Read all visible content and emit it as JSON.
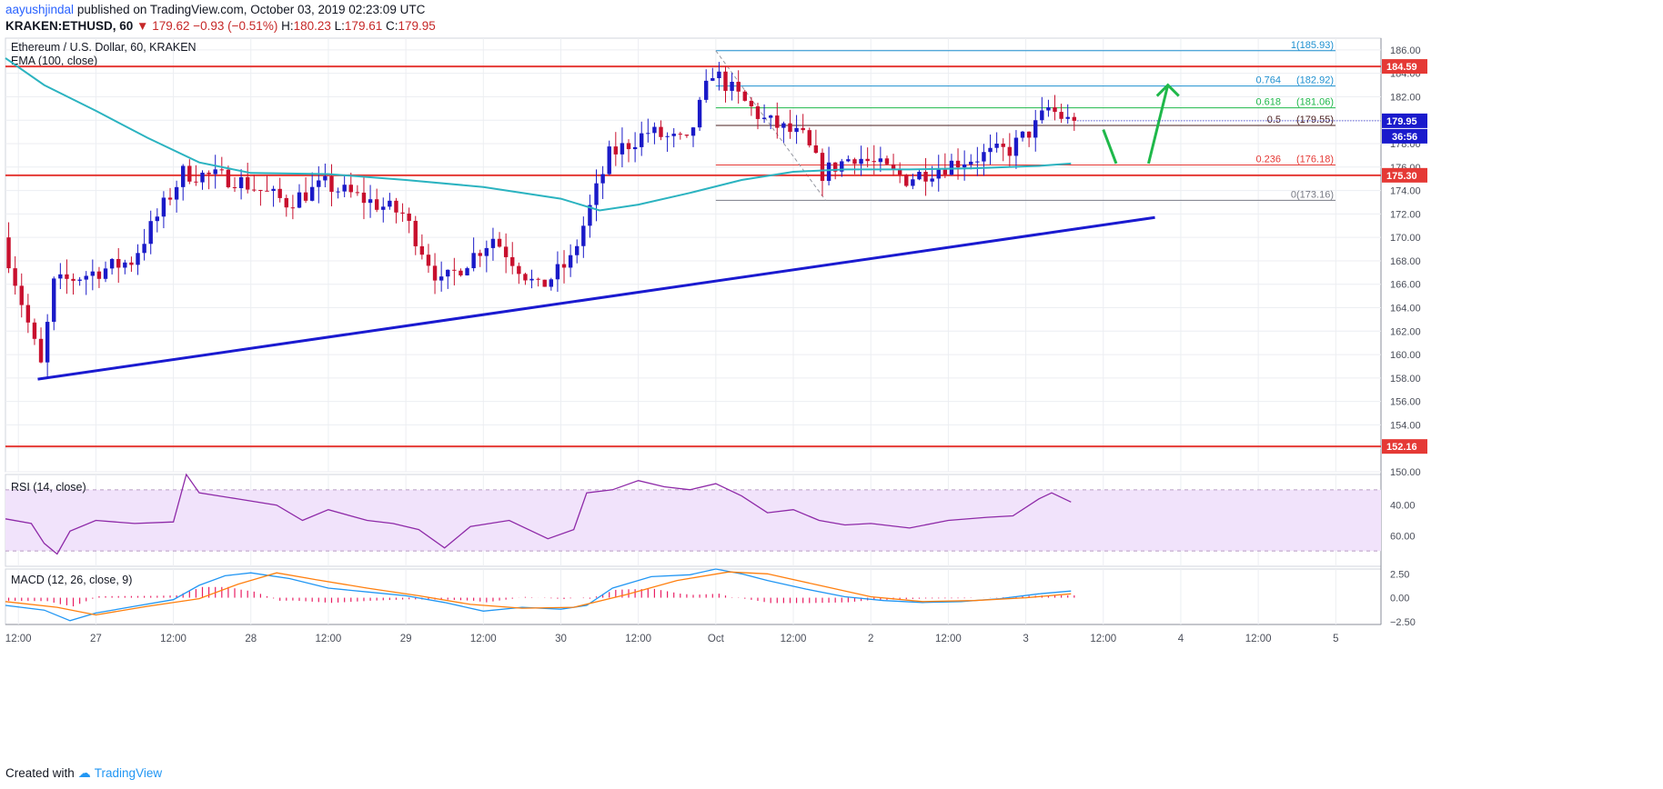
{
  "header": {
    "author": "aayushjindal",
    "published_text": "published on TradingView.com, October 03, 2019 02:23:09 UTC",
    "symbol": "KRAKEN:ETHUSD, 60",
    "change_arrow": "▼",
    "open": "179.62",
    "change": "−0.93 (−0.51%)",
    "high_label": "H:",
    "high": "180.23",
    "low_label": "L:",
    "low": "179.61",
    "close_label": "C:",
    "close": "179.95"
  },
  "footer": {
    "created_with": "Created with",
    "brand": "TradingView"
  },
  "colors": {
    "up": "#1a1ac8",
    "down": "#c8102e",
    "ema": "#2bb3c0",
    "hline": "#e53935",
    "trend": "#1a1ad0",
    "arrow": "#1fb84a",
    "rsi_bg": "#f1e3fb",
    "rsi_line": "#8e2aa8",
    "macd_line": "#2196f3",
    "signal_line": "#ff7f0e",
    "hist": "#e91e63",
    "fib_0": "#787b86",
    "fib_0236": "#e53935",
    "fib_05": "#4a1f1f",
    "fib_0618": "#1fb84a",
    "fib_0764": "#1e90d0",
    "fib_1": "#1e90d0"
  },
  "chart_data": [
    {
      "type": "candlestick",
      "title": "Ethereum / U.S. Dollar, 60, KRAKEN",
      "indicator_label": "EMA (100, close)",
      "ylim": [
        150,
        187
      ],
      "y_ticks": [
        150,
        152,
        154,
        156,
        158,
        160,
        162,
        164,
        166,
        168,
        170,
        172,
        174,
        176,
        178,
        180,
        182,
        184,
        186
      ],
      "y_tick_labels": [
        "150.00",
        "152.00",
        "154.00",
        "156.00",
        "158.00",
        "160.00",
        "162.00",
        "164.00",
        "166.00",
        "168.00",
        "170.00",
        "172.00",
        "174.00",
        "176.00",
        "178.00",
        "180.00",
        "182.00",
        "184.00",
        "186.00"
      ],
      "x_tick_labels": [
        "12:00",
        "27",
        "12:00",
        "28",
        "12:00",
        "29",
        "12:00",
        "30",
        "12:00",
        "Oct",
        "12:00",
        "2",
        "12:00",
        "3",
        "12:00",
        "4",
        "12:00",
        "5"
      ],
      "x_tick_hours": [
        12,
        24,
        36,
        48,
        60,
        72,
        84,
        96,
        108,
        120,
        132,
        144,
        156,
        168,
        180,
        192,
        204,
        216
      ],
      "x_start_hour": 10,
      "x_end_hour": 223,
      "last_bar_hour": 175,
      "ohlc_key_prices": [
        {
          "hour": 10,
          "price": 170.0
        },
        {
          "hour": 16,
          "price": 159.0
        },
        {
          "hour": 18,
          "price": 166.0
        },
        {
          "hour": 30,
          "price": 168.0
        },
        {
          "hour": 38,
          "price": 175.5
        },
        {
          "hour": 46,
          "price": 175.0
        },
        {
          "hour": 54,
          "price": 173.0
        },
        {
          "hour": 60,
          "price": 174.5
        },
        {
          "hour": 72,
          "price": 172.0
        },
        {
          "hour": 78,
          "price": 166.0
        },
        {
          "hour": 86,
          "price": 170.0
        },
        {
          "hour": 93,
          "price": 165.6
        },
        {
          "hour": 98,
          "price": 168.0
        },
        {
          "hour": 104,
          "price": 177.0
        },
        {
          "hour": 110,
          "price": 179.0
        },
        {
          "hour": 116,
          "price": 178.0
        },
        {
          "hour": 120,
          "price": 184.2
        },
        {
          "hour": 124,
          "price": 182.0
        },
        {
          "hour": 128,
          "price": 180.0
        },
        {
          "hour": 134,
          "price": 178.5
        },
        {
          "hour": 137,
          "price": 175.5
        },
        {
          "hour": 142,
          "price": 177.0
        },
        {
          "hour": 150,
          "price": 175.0
        },
        {
          "hour": 158,
          "price": 176.5
        },
        {
          "hour": 166,
          "price": 177.5
        },
        {
          "hour": 170,
          "price": 179.5
        },
        {
          "hour": 172,
          "price": 181.0
        },
        {
          "hour": 175,
          "price": 179.95
        }
      ],
      "ema_100": [
        {
          "hour": 10,
          "value": 185.3
        },
        {
          "hour": 16,
          "value": 183.0
        },
        {
          "hour": 24,
          "value": 180.8
        },
        {
          "hour": 32,
          "value": 178.5
        },
        {
          "hour": 40,
          "value": 176.4
        },
        {
          "hour": 48,
          "value": 175.5
        },
        {
          "hour": 60,
          "value": 175.4
        },
        {
          "hour": 72,
          "value": 174.9
        },
        {
          "hour": 84,
          "value": 174.3
        },
        {
          "hour": 96,
          "value": 173.3
        },
        {
          "hour": 102,
          "value": 172.3
        },
        {
          "hour": 108,
          "value": 172.8
        },
        {
          "hour": 116,
          "value": 173.8
        },
        {
          "hour": 124,
          "value": 174.9
        },
        {
          "hour": 132,
          "value": 175.6
        },
        {
          "hour": 140,
          "value": 175.8
        },
        {
          "hour": 150,
          "value": 175.8
        },
        {
          "hour": 160,
          "value": 175.9
        },
        {
          "hour": 170,
          "value": 176.1
        },
        {
          "hour": 175,
          "value": 176.3
        }
      ],
      "horizontal_levels": [
        {
          "value": 184.59,
          "label": "184.59"
        },
        {
          "value": 175.3,
          "label": "175.30"
        },
        {
          "value": 152.16,
          "label": "152.16"
        }
      ],
      "last_price": {
        "value": 179.95,
        "label": "179.95",
        "countdown": "36:56"
      },
      "trend_line": {
        "start": {
          "hour": 15,
          "price": 157.9
        },
        "end": {
          "hour": 188,
          "price": 171.7
        }
      },
      "fibonacci": [
        {
          "ratio": "1",
          "value": 185.93,
          "label": "1(185.93)"
        },
        {
          "ratio": "0.764",
          "value": 182.92,
          "label": "(182.92)",
          "ratio_label": "0.764"
        },
        {
          "ratio": "0.618",
          "value": 181.06,
          "label": "(181.06)",
          "ratio_label": "0.618"
        },
        {
          "ratio": "0.5",
          "value": 179.55,
          "label": "(179.55)",
          "ratio_label": "0.5"
        },
        {
          "ratio": "0.236",
          "value": 176.18,
          "label": "(176.18)",
          "ratio_label": "0.236"
        },
        {
          "ratio": "0",
          "value": 173.16,
          "label": "0(173.16)"
        }
      ],
      "fib_range_hours": [
        120,
        223
      ],
      "projection_arrows": [
        {
          "from": {
            "hour": 180,
            "price": 179.2
          },
          "to": {
            "hour": 182,
            "price": 176.3
          }
        },
        {
          "from": {
            "hour": 187,
            "price": 176.3
          },
          "to": {
            "hour": 190,
            "price": 183.0
          }
        }
      ]
    },
    {
      "type": "line",
      "title": "RSI (14, close)",
      "ylim": [
        20,
        80
      ],
      "y_tick_labels": [
        "40.00",
        "60.00"
      ],
      "band": [
        30,
        70
      ],
      "rsi_series": [
        {
          "hour": 10,
          "value": 51
        },
        {
          "hour": 14,
          "value": 48
        },
        {
          "hour": 16,
          "value": 35
        },
        {
          "hour": 18,
          "value": 28
        },
        {
          "hour": 20,
          "value": 43
        },
        {
          "hour": 24,
          "value": 50
        },
        {
          "hour": 30,
          "value": 48
        },
        {
          "hour": 36,
          "value": 49
        },
        {
          "hour": 38,
          "value": 80
        },
        {
          "hour": 40,
          "value": 68
        },
        {
          "hour": 46,
          "value": 64
        },
        {
          "hour": 52,
          "value": 60
        },
        {
          "hour": 56,
          "value": 50
        },
        {
          "hour": 60,
          "value": 57
        },
        {
          "hour": 66,
          "value": 50
        },
        {
          "hour": 70,
          "value": 48
        },
        {
          "hour": 74,
          "value": 44
        },
        {
          "hour": 78,
          "value": 32
        },
        {
          "hour": 82,
          "value": 46
        },
        {
          "hour": 88,
          "value": 50
        },
        {
          "hour": 94,
          "value": 38
        },
        {
          "hour": 98,
          "value": 44
        },
        {
          "hour": 100,
          "value": 68
        },
        {
          "hour": 104,
          "value": 70
        },
        {
          "hour": 108,
          "value": 76
        },
        {
          "hour": 112,
          "value": 72
        },
        {
          "hour": 116,
          "value": 70
        },
        {
          "hour": 120,
          "value": 74
        },
        {
          "hour": 124,
          "value": 66
        },
        {
          "hour": 128,
          "value": 55
        },
        {
          "hour": 132,
          "value": 57
        },
        {
          "hour": 136,
          "value": 50
        },
        {
          "hour": 140,
          "value": 47
        },
        {
          "hour": 144,
          "value": 48
        },
        {
          "hour": 150,
          "value": 45
        },
        {
          "hour": 156,
          "value": 50
        },
        {
          "hour": 162,
          "value": 52
        },
        {
          "hour": 166,
          "value": 53
        },
        {
          "hour": 170,
          "value": 64
        },
        {
          "hour": 172,
          "value": 68
        },
        {
          "hour": 175,
          "value": 62
        }
      ]
    },
    {
      "type": "line",
      "title": "MACD (12, 26, close, 9)",
      "ylim": [
        -2.8,
        3.0
      ],
      "y_tick_labels": [
        "2.50",
        "0.00",
        "−2.50"
      ],
      "y_tick_values": [
        2.5,
        0,
        -2.5
      ],
      "macd_series": [
        {
          "hour": 10,
          "value": -0.8
        },
        {
          "hour": 16,
          "value": -1.3
        },
        {
          "hour": 20,
          "value": -2.4
        },
        {
          "hour": 24,
          "value": -1.6
        },
        {
          "hour": 30,
          "value": -0.9
        },
        {
          "hour": 36,
          "value": -0.2
        },
        {
          "hour": 40,
          "value": 1.3
        },
        {
          "hour": 44,
          "value": 2.3
        },
        {
          "hour": 48,
          "value": 2.6
        },
        {
          "hour": 54,
          "value": 2.0
        },
        {
          "hour": 60,
          "value": 1.0
        },
        {
          "hour": 66,
          "value": 0.6
        },
        {
          "hour": 72,
          "value": 0.2
        },
        {
          "hour": 78,
          "value": -0.5
        },
        {
          "hour": 84,
          "value": -1.4
        },
        {
          "hour": 90,
          "value": -1.0
        },
        {
          "hour": 96,
          "value": -1.2
        },
        {
          "hour": 100,
          "value": -0.8
        },
        {
          "hour": 104,
          "value": 1.0
        },
        {
          "hour": 110,
          "value": 2.2
        },
        {
          "hour": 116,
          "value": 2.4
        },
        {
          "hour": 120,
          "value": 3.0
        },
        {
          "hour": 124,
          "value": 2.5
        },
        {
          "hour": 128,
          "value": 1.8
        },
        {
          "hour": 134,
          "value": 0.9
        },
        {
          "hour": 140,
          "value": 0.1
        },
        {
          "hour": 146,
          "value": -0.3
        },
        {
          "hour": 152,
          "value": -0.5
        },
        {
          "hour": 158,
          "value": -0.4
        },
        {
          "hour": 164,
          "value": -0.1
        },
        {
          "hour": 170,
          "value": 0.4
        },
        {
          "hour": 175,
          "value": 0.7
        }
      ],
      "signal_series": [
        {
          "hour": 10,
          "value": -0.4
        },
        {
          "hour": 18,
          "value": -1.0
        },
        {
          "hour": 24,
          "value": -1.8
        },
        {
          "hour": 32,
          "value": -0.9
        },
        {
          "hour": 40,
          "value": -0.1
        },
        {
          "hour": 46,
          "value": 1.4
        },
        {
          "hour": 52,
          "value": 2.6
        },
        {
          "hour": 58,
          "value": 1.9
        },
        {
          "hour": 66,
          "value": 1.0
        },
        {
          "hour": 74,
          "value": 0.2
        },
        {
          "hour": 82,
          "value": -0.7
        },
        {
          "hour": 90,
          "value": -1.1
        },
        {
          "hour": 98,
          "value": -1.0
        },
        {
          "hour": 106,
          "value": 0.3
        },
        {
          "hour": 114,
          "value": 1.8
        },
        {
          "hour": 122,
          "value": 2.7
        },
        {
          "hour": 128,
          "value": 2.5
        },
        {
          "hour": 136,
          "value": 1.3
        },
        {
          "hour": 144,
          "value": 0.1
        },
        {
          "hour": 152,
          "value": -0.4
        },
        {
          "hour": 160,
          "value": -0.3
        },
        {
          "hour": 168,
          "value": 0.0
        },
        {
          "hour": 175,
          "value": 0.4
        }
      ]
    }
  ]
}
